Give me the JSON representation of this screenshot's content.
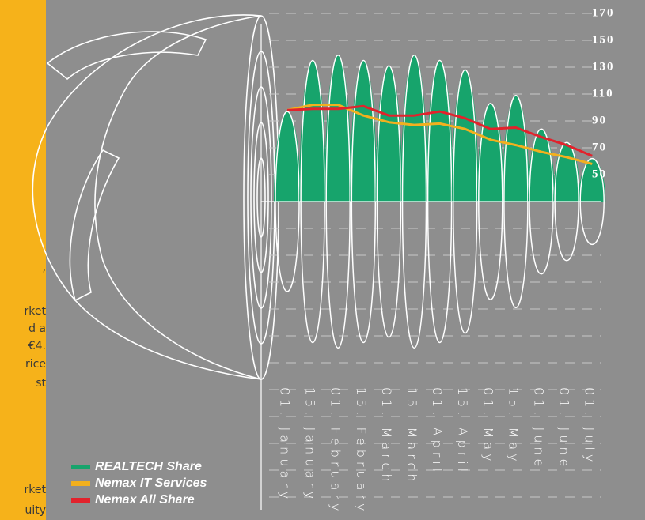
{
  "side_text": [
    ",",
    "rket",
    "d a",
    "€4.",
    "rice",
    "st",
    "rket",
    "uity"
  ],
  "chart_data": {
    "type": "bar",
    "categories": [
      "01. January",
      "15. January",
      "01. February",
      "15. February",
      "01. March",
      "15. March",
      "01. April",
      "15. April",
      "01. May",
      "15. May",
      "01. June",
      "01. June",
      "01. July"
    ],
    "series": [
      {
        "name": "REALTECH Share",
        "color": "#17a46c",
        "type": "bar",
        "values": [
          97,
          135,
          139,
          135,
          131,
          139,
          135,
          128,
          103,
          109,
          84,
          74,
          62
        ]
      },
      {
        "name": "Nemax IT Services",
        "color": "#f2b01e",
        "type": "line",
        "values": [
          98,
          102,
          102,
          94,
          89,
          87,
          88,
          84,
          76,
          72,
          67,
          63,
          58
        ]
      },
      {
        "name": "Nemax All Share",
        "color": "#e2222c",
        "type": "line",
        "values": [
          98,
          99,
          99,
          101,
          94,
          94,
          97,
          92,
          84,
          85,
          78,
          72,
          64
        ]
      }
    ],
    "ylim": [
      30,
      170
    ],
    "yticks": [
      50,
      70,
      90,
      110,
      130,
      150,
      170
    ],
    "grid": true
  }
}
